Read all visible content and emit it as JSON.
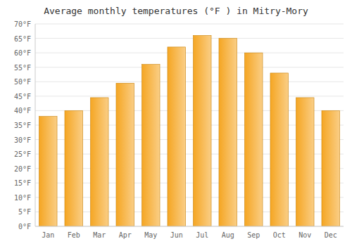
{
  "chart_data": {
    "type": "bar",
    "title": "Average monthly temperatures (°F ) in Mitry-Mory",
    "categories": [
      "Jan",
      "Feb",
      "Mar",
      "Apr",
      "May",
      "Jun",
      "Jul",
      "Aug",
      "Sep",
      "Oct",
      "Nov",
      "Dec"
    ],
    "values": [
      38,
      40,
      44.5,
      49.5,
      56,
      62,
      66,
      65,
      60,
      53,
      44.5,
      40
    ],
    "color": "#F5A623",
    "ylim": [
      0,
      70
    ],
    "yticks": [
      {
        "value": 0,
        "label": "0°F"
      },
      {
        "value": 5,
        "label": "5°F"
      },
      {
        "value": 10,
        "label": "10°F"
      },
      {
        "value": 15,
        "label": "15°F"
      },
      {
        "value": 20,
        "label": "20°F"
      },
      {
        "value": 25,
        "label": "25°F"
      },
      {
        "value": 30,
        "label": "30°F"
      },
      {
        "value": 35,
        "label": "35°F"
      },
      {
        "value": 40,
        "label": "40°F"
      },
      {
        "value": 45,
        "label": "45°F"
      },
      {
        "value": 50,
        "label": "50°F"
      },
      {
        "value": 55,
        "label": "55°F"
      },
      {
        "value": 60,
        "label": "60°F"
      },
      {
        "value": 65,
        "label": "65°F"
      },
      {
        "value": 70,
        "label": "70°F"
      }
    ],
    "grid": true
  }
}
